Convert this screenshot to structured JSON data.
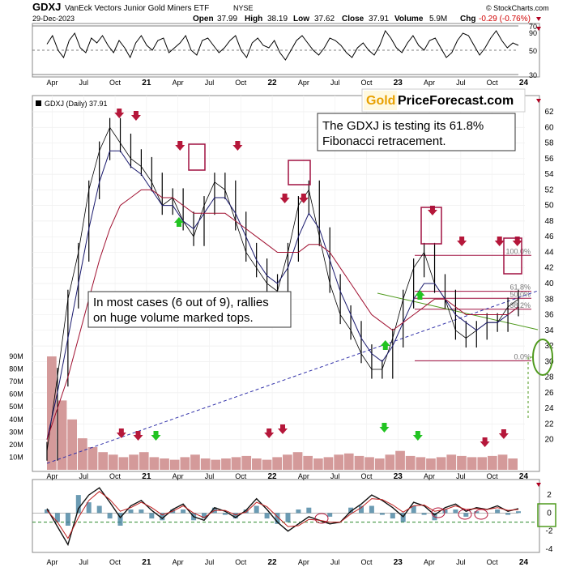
{
  "header": {
    "ticker": "GDXJ",
    "name": "VanEck Vectors Junior Gold Miners ETF",
    "exchange": "NYSE",
    "watermark": "© StockCharts.com",
    "date": "29-Dec-2023",
    "open_label": "Open",
    "open": "37.99",
    "high_label": "High",
    "high": "38.19",
    "low_label": "Low",
    "low": "37.62",
    "close_label": "Close",
    "close": "37.91",
    "volume_label": "Volume",
    "volume": "5.9M",
    "chg_label": "Chg",
    "chg": "-0.29 (-0.76%)"
  },
  "legend": {
    "label": "GDXJ (Daily) 37.91"
  },
  "brand": {
    "gold": "Gold",
    "rest": "PriceForecast.com"
  },
  "annotations": {
    "fib_note_line1": "The GDXJ is testing its 61.8%",
    "fib_note_line2": "Fibonacci retracement.",
    "volume_note_line1": "In most cases (6 out of 9), rallies",
    "volume_note_line2": "on huge volume marked tops."
  },
  "colors": {
    "candle": "#000000",
    "ma_short": "#1a1a6e",
    "ma_long": "#a01030",
    "volume": "#d49a9a",
    "marker_red": "#b5173a",
    "marker_green": "#22c322",
    "fib_lines": "#a01040",
    "trend_blue": "#3333aa",
    "trend_green": "#4f9a1d",
    "oscillator": "#111111",
    "oscillator_signal": "#c02020",
    "macd_hist": "#3a7a9a",
    "gold": "#e8a000"
  },
  "chart_data": [
    {
      "type": "line",
      "title": "",
      "ylim": [
        30,
        70
      ],
      "y_ticks": [
        90,
        70,
        50,
        30
      ],
      "reference_lines": [
        70,
        50,
        30
      ],
      "series": [
        {
          "values": [
            55,
            62,
            50,
            44,
            58,
            64,
            52,
            48,
            60,
            56,
            62,
            54,
            48,
            58,
            52,
            44,
            56,
            62,
            54,
            50,
            58,
            60,
            48,
            52,
            56,
            62,
            50,
            46,
            58,
            60,
            54,
            48,
            52,
            58,
            62,
            50,
            44,
            56,
            60,
            54,
            52,
            58,
            48,
            42,
            50,
            58,
            62,
            56,
            50,
            46,
            52,
            60,
            58,
            54,
            48,
            44,
            52,
            56,
            50,
            46,
            54,
            66,
            60,
            52,
            48,
            56,
            62,
            54,
            50,
            58,
            60,
            52,
            44,
            48,
            58,
            64,
            62,
            54,
            46,
            52,
            60,
            66,
            58,
            52,
            56,
            54
          ]
        }
      ]
    },
    {
      "type": "line",
      "title": "",
      "ylabel": "",
      "ylim": [
        18,
        62
      ],
      "y_ticks": [
        62,
        60,
        58,
        56,
        54,
        52,
        50,
        48,
        46,
        44,
        42,
        40,
        38,
        36,
        34,
        32,
        30,
        28,
        26,
        24,
        22,
        20
      ],
      "x_tick_labels": [
        "Apr",
        "Jul",
        "Oct",
        "21",
        "Apr",
        "Jul",
        "Oct",
        "22",
        "Apr",
        "Jul",
        "Oct",
        "23",
        "Apr",
        "Jul",
        "Oct",
        "24"
      ],
      "x_tick_positions": [
        0.5,
        3.5,
        6.5,
        9.5,
        12.5,
        15.5,
        18.5,
        21.5,
        24.5,
        27.5,
        30.5,
        33.5,
        36.5,
        39.5,
        42.5,
        45.5
      ],
      "fibonacci": {
        "levels": [
          {
            "label": "100.0%",
            "value": 43.6
          },
          {
            "label": "61.8%",
            "value": 39.0
          },
          {
            "label": "50.0%",
            "value": 38.1
          },
          {
            "label": "38.2%",
            "value": 36.7
          },
          {
            "label": "0.0%",
            "value": 30.1
          }
        ]
      },
      "series": [
        {
          "name": "GDXJ",
          "values": [
            18.5,
            28,
            38,
            44,
            52,
            57,
            60,
            58,
            56,
            55,
            53,
            50,
            51,
            48,
            46,
            50,
            53,
            52,
            48,
            44,
            42,
            40,
            39,
            44,
            50,
            52,
            46,
            40,
            36,
            34,
            31,
            29,
            29,
            33,
            38,
            42,
            44,
            40,
            38,
            34,
            33,
            34,
            35,
            35,
            37,
            38
          ]
        },
        {
          "name": "MA short",
          "values": [
            20,
            26,
            33,
            40,
            47,
            53,
            57,
            57,
            55,
            54,
            52,
            50,
            50,
            48,
            47,
            49,
            51,
            51,
            49,
            46,
            43,
            41,
            40,
            42,
            46,
            49,
            47,
            43,
            39,
            36,
            33,
            31,
            30,
            32,
            35,
            38,
            40,
            40,
            38,
            36,
            35,
            34,
            35,
            35,
            36,
            37
          ]
        },
        {
          "name": "MA long",
          "values": [
            20,
            24,
            28,
            33,
            38,
            43,
            47,
            50,
            51,
            52,
            52,
            51,
            51,
            50,
            49,
            49,
            49,
            49,
            48,
            47,
            46,
            45,
            44,
            44,
            44,
            45,
            45,
            44,
            42,
            40,
            38,
            36,
            35,
            34,
            35,
            36,
            37,
            38,
            38,
            37,
            36,
            36,
            36,
            36,
            36,
            37
          ]
        }
      ],
      "volume": {
        "y_ticks": [
          "90M",
          "80M",
          "70M",
          "60M",
          "50M",
          "40M",
          "30M",
          "20M",
          "10M"
        ],
        "values": [
          90,
          55,
          40,
          25,
          18,
          14,
          12,
          10,
          12,
          14,
          10,
          9,
          8,
          10,
          12,
          9,
          8,
          9,
          10,
          11,
          9,
          8,
          10,
          12,
          14,
          11,
          9,
          10,
          12,
          13,
          11,
          10,
          9,
          12,
          15,
          11,
          10,
          9,
          10,
          12,
          11,
          10,
          10,
          11,
          12,
          9
        ]
      },
      "markers": {
        "red_price": [
          6.9,
          8.5,
          12.7,
          18.2,
          22.7,
          24.5,
          36.8,
          39.6,
          43.2,
          44.9
        ],
        "green_price": [
          12.6,
          32.3,
          35.6
        ],
        "red_volume": [
          7.1,
          8.7,
          21.2,
          22.5,
          41.8,
          43.6
        ],
        "green_volume": [
          10.4,
          32.2,
          35.4
        ]
      }
    },
    {
      "type": "line",
      "title": "",
      "ylim": [
        -4,
        3
      ],
      "y_ticks": [
        2,
        0,
        -2,
        -4
      ],
      "series": [
        {
          "values": [
            0.5,
            -1.5,
            -3.5,
            0.5,
            2.0,
            2.8,
            1.2,
            -0.5,
            0.8,
            1.4,
            0.3,
            -0.6,
            0.4,
            1.0,
            -0.4,
            -0.8,
            0.6,
            0.2,
            -0.5,
            0.3,
            1.6,
            0.4,
            -1.0,
            -2.0,
            -1.2,
            -0.4,
            -0.8,
            -1.2,
            -1.0,
            0.2,
            1.0,
            2.0,
            1.4,
            0.6,
            -0.4,
            1.2,
            0.8,
            -0.2,
            0.6,
            1.0,
            0.2,
            0.6,
            0.4,
            0.8,
            0.2,
            0.5
          ]
        },
        {
          "values": [
            0.3,
            -1.0,
            -2.8,
            -0.5,
            1.4,
            2.4,
            1.5,
            0.2,
            0.6,
            1.2,
            0.6,
            -0.2,
            0.2,
            0.8,
            0.0,
            -0.5,
            0.3,
            0.3,
            -0.2,
            0.1,
            1.2,
            0.7,
            -0.4,
            -1.5,
            -1.4,
            -0.7,
            -0.8,
            -1.0,
            -1.0,
            -0.1,
            0.6,
            1.6,
            1.5,
            0.9,
            0.1,
            0.8,
            0.9,
            0.2,
            0.4,
            0.8,
            0.4,
            0.5,
            0.4,
            0.6,
            0.3,
            0.4
          ]
        }
      ]
    }
  ]
}
